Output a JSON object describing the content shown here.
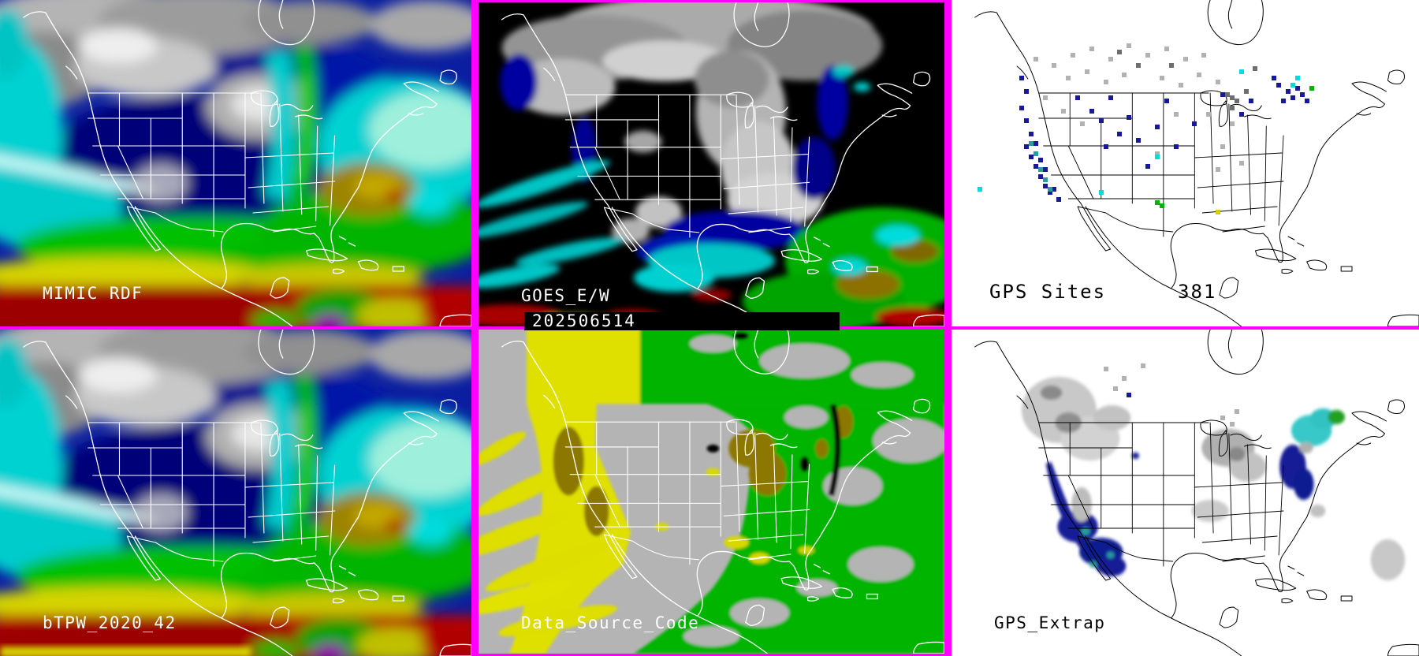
{
  "panels": {
    "mimic_rdf": {
      "label": "MIMIC RDF"
    },
    "goes_ew": {
      "label": "GOES_E/W",
      "timestamp": "202506514"
    },
    "gps_sites": {
      "label": "GPS Sites",
      "count": "381",
      "marker_colors": {
        "navy": "#18189a",
        "gray": "#b2b2b2",
        "darkgray": "#6e6e6e",
        "teal": "#2a9d9d",
        "cyan": "#00dcdc",
        "green": "#00b400",
        "yellow": "#d6cc00"
      },
      "markers": [
        {
          "x": 15,
          "y": 24,
          "c": "navy"
        },
        {
          "x": 16,
          "y": 28,
          "c": "navy"
        },
        {
          "x": 15,
          "y": 33,
          "c": "navy"
        },
        {
          "x": 16,
          "y": 37,
          "c": "navy"
        },
        {
          "x": 17,
          "y": 41,
          "c": "navy"
        },
        {
          "x": 16,
          "y": 45,
          "c": "navy"
        },
        {
          "x": 17,
          "y": 48,
          "c": "navy"
        },
        {
          "x": 18,
          "y": 51,
          "c": "navy"
        },
        {
          "x": 19,
          "y": 54,
          "c": "navy"
        },
        {
          "x": 20,
          "y": 57,
          "c": "navy"
        },
        {
          "x": 21,
          "y": 59,
          "c": "navy"
        },
        {
          "x": 18,
          "y": 44,
          "c": "navy"
        },
        {
          "x": 19,
          "y": 49,
          "c": "navy"
        },
        {
          "x": 20,
          "y": 52,
          "c": "navy"
        },
        {
          "x": 22,
          "y": 58,
          "c": "navy"
        },
        {
          "x": 23,
          "y": 61,
          "c": "navy"
        },
        {
          "x": 27,
          "y": 30,
          "c": "navy"
        },
        {
          "x": 30,
          "y": 34,
          "c": "navy"
        },
        {
          "x": 32,
          "y": 37,
          "c": "navy"
        },
        {
          "x": 34,
          "y": 30,
          "c": "navy"
        },
        {
          "x": 36,
          "y": 41,
          "c": "navy"
        },
        {
          "x": 33,
          "y": 45,
          "c": "navy"
        },
        {
          "x": 38,
          "y": 36,
          "c": "navy"
        },
        {
          "x": 40,
          "y": 43,
          "c": "navy"
        },
        {
          "x": 44,
          "y": 39,
          "c": "navy"
        },
        {
          "x": 46,
          "y": 31,
          "c": "navy"
        },
        {
          "x": 48,
          "y": 45,
          "c": "navy"
        },
        {
          "x": 42,
          "y": 51,
          "c": "navy"
        },
        {
          "x": 70,
          "y": 26,
          "c": "navy"
        },
        {
          "x": 72,
          "y": 28,
          "c": "navy"
        },
        {
          "x": 73,
          "y": 30,
          "c": "navy"
        },
        {
          "x": 74,
          "y": 27,
          "c": "navy"
        },
        {
          "x": 71,
          "y": 31,
          "c": "navy"
        },
        {
          "x": 75,
          "y": 29,
          "c": "navy"
        },
        {
          "x": 69,
          "y": 24,
          "c": "navy"
        },
        {
          "x": 76,
          "y": 31,
          "c": "navy"
        },
        {
          "x": 62,
          "y": 35,
          "c": "navy"
        },
        {
          "x": 64,
          "y": 31,
          "c": "navy"
        },
        {
          "x": 58,
          "y": 29,
          "c": "navy"
        },
        {
          "x": 52,
          "y": 38,
          "c": "navy"
        },
        {
          "x": 18,
          "y": 18,
          "c": "gray"
        },
        {
          "x": 22,
          "y": 20,
          "c": "gray"
        },
        {
          "x": 26,
          "y": 17,
          "c": "gray"
        },
        {
          "x": 30,
          "y": 15,
          "c": "gray"
        },
        {
          "x": 34,
          "y": 18,
          "c": "gray"
        },
        {
          "x": 38,
          "y": 14,
          "c": "gray"
        },
        {
          "x": 42,
          "y": 17,
          "c": "gray"
        },
        {
          "x": 46,
          "y": 15,
          "c": "gray"
        },
        {
          "x": 50,
          "y": 18,
          "c": "gray"
        },
        {
          "x": 54,
          "y": 17,
          "c": "gray"
        },
        {
          "x": 25,
          "y": 24,
          "c": "gray"
        },
        {
          "x": 29,
          "y": 22,
          "c": "gray"
        },
        {
          "x": 33,
          "y": 25,
          "c": "gray"
        },
        {
          "x": 37,
          "y": 23,
          "c": "gray"
        },
        {
          "x": 45,
          "y": 24,
          "c": "gray"
        },
        {
          "x": 49,
          "y": 26,
          "c": "gray"
        },
        {
          "x": 53,
          "y": 23,
          "c": "gray"
        },
        {
          "x": 57,
          "y": 25,
          "c": "gray"
        },
        {
          "x": 20,
          "y": 30,
          "c": "gray"
        },
        {
          "x": 24,
          "y": 34,
          "c": "gray"
        },
        {
          "x": 28,
          "y": 38,
          "c": "gray"
        },
        {
          "x": 55,
          "y": 35,
          "c": "gray"
        },
        {
          "x": 60,
          "y": 38,
          "c": "gray"
        },
        {
          "x": 58,
          "y": 45,
          "c": "gray"
        },
        {
          "x": 62,
          "y": 50,
          "c": "gray"
        },
        {
          "x": 48,
          "y": 35,
          "c": "gray"
        },
        {
          "x": 44,
          "y": 47,
          "c": "gray"
        },
        {
          "x": 57,
          "y": 52,
          "c": "gray"
        },
        {
          "x": 59,
          "y": 29,
          "c": "darkgray"
        },
        {
          "x": 61,
          "y": 31,
          "c": "darkgray"
        },
        {
          "x": 60,
          "y": 33,
          "c": "darkgray"
        },
        {
          "x": 63,
          "y": 28,
          "c": "darkgray"
        },
        {
          "x": 36,
          "y": 16,
          "c": "darkgray"
        },
        {
          "x": 40,
          "y": 20,
          "c": "darkgray"
        },
        {
          "x": 65,
          "y": 21,
          "c": "darkgray"
        },
        {
          "x": 47,
          "y": 20,
          "c": "darkgray"
        },
        {
          "x": 60,
          "y": 30,
          "c": "darkgray"
        },
        {
          "x": 18,
          "y": 47,
          "c": "teal"
        },
        {
          "x": 19,
          "y": 52,
          "c": "teal"
        },
        {
          "x": 20,
          "y": 55,
          "c": "teal"
        },
        {
          "x": 17,
          "y": 44,
          "c": "teal"
        },
        {
          "x": 21,
          "y": 58,
          "c": "teal"
        },
        {
          "x": 6,
          "y": 58,
          "c": "cyan"
        },
        {
          "x": 32,
          "y": 59,
          "c": "cyan"
        },
        {
          "x": 62,
          "y": 22,
          "c": "cyan"
        },
        {
          "x": 74,
          "y": 24,
          "c": "cyan"
        },
        {
          "x": 73,
          "y": 26,
          "c": "cyan"
        },
        {
          "x": 44,
          "y": 48,
          "c": "cyan"
        },
        {
          "x": 44,
          "y": 62,
          "c": "green"
        },
        {
          "x": 45,
          "y": 63,
          "c": "green"
        },
        {
          "x": 77,
          "y": 27,
          "c": "green"
        },
        {
          "x": 57,
          "y": 65,
          "c": "yellow"
        }
      ]
    },
    "btpw_2020_42": {
      "label": "bTPW_2020_42"
    },
    "data_source_code": {
      "label": "Data_Source_Code"
    },
    "gps_extrap": {
      "label": "GPS_Extrap",
      "marker_colors": {
        "gray": "#b2b2b2",
        "navy": "#18189a"
      },
      "markers": [
        {
          "x": 33,
          "y": 12,
          "c": "gray"
        },
        {
          "x": 37,
          "y": 15,
          "c": "gray"
        },
        {
          "x": 41,
          "y": 11,
          "c": "gray"
        },
        {
          "x": 35,
          "y": 18,
          "c": "gray"
        },
        {
          "x": 58,
          "y": 27,
          "c": "gray"
        },
        {
          "x": 61,
          "y": 25,
          "c": "gray"
        },
        {
          "x": 60,
          "y": 29,
          "c": "gray"
        },
        {
          "x": 38,
          "y": 20,
          "c": "navy"
        }
      ]
    }
  },
  "colors": {
    "frame_magenta": "#ff00ff",
    "timestamp_bar_bg": "#000000",
    "label_on_dark": "#ffffff",
    "label_on_light": "#000000",
    "tpw_palette": {
      "cloud_gray": "#b0b0b0",
      "dry_navy": "#000078",
      "blue": "#0a1ea0",
      "moist_cyan": "#00d2d2",
      "green": "#00c000",
      "yellow": "#d4d400",
      "olive": "#9c8400",
      "red": "#b40000",
      "purple": "#8c00a8"
    },
    "source_code_palette": {
      "no_data_gray": "#b4b4b4",
      "goes_w_yellow": "#e0e000",
      "goes_e_green": "#00b400",
      "gps_olive": "#8c7800",
      "black": "#000000"
    },
    "map_outline_dark_panels": "#ffffff",
    "map_outline_light_panels": "#000000"
  }
}
